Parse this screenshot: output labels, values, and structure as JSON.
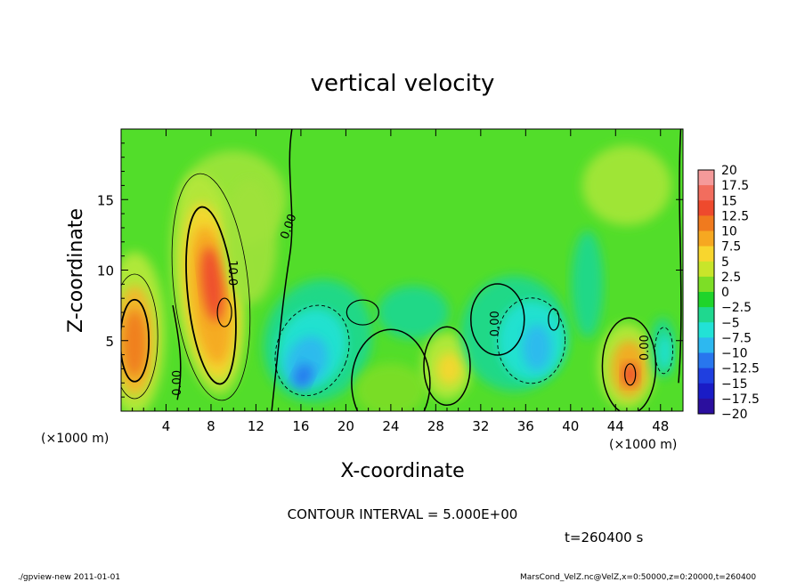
{
  "chart_data": {
    "type": "heatmap",
    "title": "vertical velocity",
    "xlabel": "X-coordinate",
    "ylabel": "Z-coordinate",
    "x_unit": "(×1000 m)",
    "y_unit": "(×1000 m)",
    "xlim": [
      0,
      50
    ],
    "ylim": [
      0,
      20
    ],
    "xticks": [
      4,
      8,
      12,
      16,
      20,
      24,
      28,
      32,
      36,
      40,
      44,
      48
    ],
    "yticks": [
      5,
      10,
      15
    ],
    "contour_interval_label": "CONTOUR INTERVAL = 5.000E+00",
    "time_label": "t=260400 s",
    "contour_labels": [
      "0.00",
      "10.0",
      "0.00",
      "0.00",
      "0.00"
    ],
    "colorbar": {
      "levels": [
        "20",
        "17.5",
        "15",
        "12.5",
        "10",
        "7.5",
        "5",
        "2.5",
        "0",
        "-2.5",
        "-5",
        "-7.5",
        "-10",
        "-12.5",
        "-15",
        "-17.5",
        "-20"
      ],
      "colors": [
        "#f59a9a",
        "#f26d5e",
        "#ee4a2d",
        "#f07a1e",
        "#f6a821",
        "#f8d62e",
        "#c8e52a",
        "#7dde26",
        "#1fd42b",
        "#1fd88f",
        "#22e2d6",
        "#2db8f0",
        "#2876ee",
        "#1f3fe0",
        "#1a1cc6",
        "#2b0f9e",
        "#6a1aa3"
      ]
    },
    "features": [
      {
        "kind": "updraft",
        "x": 1.2,
        "z": 4.8,
        "peak": 12.5
      },
      {
        "kind": "updraft",
        "x": 8.0,
        "z": 8.0,
        "peak": 15
      },
      {
        "kind": "updraft",
        "x": 28.8,
        "z": 3.0,
        "peak": 7.5
      },
      {
        "kind": "updraft",
        "x": 45.2,
        "z": 3.0,
        "peak": 12.5
      },
      {
        "kind": "downdraft",
        "x": 16.5,
        "z": 3.5,
        "peak": -12.5
      },
      {
        "kind": "downdraft",
        "x": 36.5,
        "z": 5.0,
        "peak": -7.5
      }
    ]
  },
  "footer": {
    "left": "./gpview-new  2011-01-01",
    "right": "MarsCond_VelZ.nc@VelZ,x=0:50000,z=0:20000,t=260400"
  }
}
